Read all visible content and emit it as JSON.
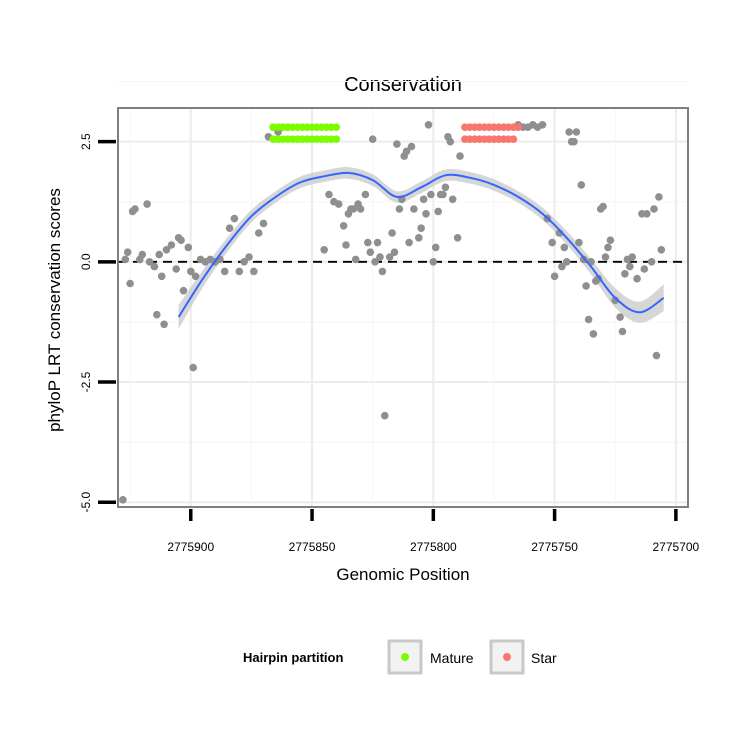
{
  "chart_data": {
    "type": "scatter",
    "title": "Conservation",
    "xlabel": "Genomic Position",
    "ylabel": "phyloP LRT conservation scores",
    "x_reversed": true,
    "xlim": [
      2775930,
      2775695
    ],
    "ylim": [
      -5.1,
      3.2
    ],
    "x_ticks": [
      2775900,
      2775850,
      2775800,
      2775750,
      2775700
    ],
    "x_tick_labels": [
      "2775900",
      "2775850",
      "2775800",
      "2775750",
      "2775700"
    ],
    "y_ticks": [
      -5.0,
      -2.5,
      0.0,
      2.5
    ],
    "y_tick_labels": [
      "-5.0",
      "-2.5",
      "0.0",
      "2.5"
    ],
    "reference_line": {
      "y": 0,
      "style": "dashed"
    },
    "grid": true,
    "legend": {
      "title": "Hairpin partition",
      "position": "bottom",
      "entries": [
        {
          "label": "Mature",
          "color": "#7cfc00"
        },
        {
          "label": "Star",
          "color": "#f8766d"
        }
      ]
    },
    "colors": {
      "other": "#8f8f8f",
      "smooth": "#3366ff",
      "ribbon": "#cccccc"
    },
    "smooth": {
      "x": [
        2775905,
        2775895,
        2775885,
        2775875,
        2775865,
        2775855,
        2775845,
        2775835,
        2775825,
        2775815,
        2775805,
        2775795,
        2775785,
        2775775,
        2775765,
        2775755,
        2775745,
        2775735,
        2775725,
        2775715,
        2775705
      ],
      "y": [
        -1.15,
        -0.35,
        0.35,
        0.95,
        1.35,
        1.65,
        1.78,
        1.85,
        1.7,
        1.35,
        1.55,
        1.8,
        1.75,
        1.6,
        1.35,
        1.0,
        0.5,
        -0.1,
        -0.75,
        -1.05,
        -0.75
      ],
      "se": [
        0.25,
        0.18,
        0.15,
        0.13,
        0.12,
        0.12,
        0.12,
        0.12,
        0.12,
        0.12,
        0.12,
        0.12,
        0.12,
        0.12,
        0.12,
        0.13,
        0.14,
        0.16,
        0.2,
        0.22,
        0.28
      ]
    },
    "series": [
      {
        "name": "Mature",
        "points": [
          [
            2775866,
            2.8
          ],
          [
            2775864,
            2.8
          ],
          [
            2775862,
            2.8
          ],
          [
            2775860,
            2.8
          ],
          [
            2775858,
            2.8
          ],
          [
            2775856,
            2.8
          ],
          [
            2775854,
            2.8
          ],
          [
            2775852,
            2.8
          ],
          [
            2775850,
            2.8
          ],
          [
            2775848,
            2.8
          ],
          [
            2775846,
            2.8
          ],
          [
            2775844,
            2.8
          ],
          [
            2775842,
            2.8
          ],
          [
            2775840,
            2.8
          ],
          [
            2775866,
            2.55
          ],
          [
            2775864,
            2.55
          ],
          [
            2775862,
            2.55
          ],
          [
            2775860,
            2.55
          ],
          [
            2775858,
            2.55
          ],
          [
            2775856,
            2.55
          ],
          [
            2775854,
            2.55
          ],
          [
            2775852,
            2.55
          ],
          [
            2775850,
            2.55
          ],
          [
            2775848,
            2.55
          ],
          [
            2775846,
            2.55
          ],
          [
            2775844,
            2.55
          ],
          [
            2775842,
            2.55
          ],
          [
            2775840,
            2.55
          ]
        ]
      },
      {
        "name": "Star",
        "points": [
          [
            2775787,
            2.8
          ],
          [
            2775785,
            2.8
          ],
          [
            2775783,
            2.8
          ],
          [
            2775781,
            2.8
          ],
          [
            2775779,
            2.8
          ],
          [
            2775777,
            2.8
          ],
          [
            2775775,
            2.8
          ],
          [
            2775773,
            2.8
          ],
          [
            2775771,
            2.8
          ],
          [
            2775769,
            2.8
          ],
          [
            2775767,
            2.8
          ],
          [
            2775765,
            2.8
          ],
          [
            2775787,
            2.55
          ],
          [
            2775785,
            2.55
          ],
          [
            2775783,
            2.55
          ],
          [
            2775781,
            2.55
          ],
          [
            2775779,
            2.55
          ],
          [
            2775777,
            2.55
          ],
          [
            2775775,
            2.55
          ],
          [
            2775773,
            2.55
          ],
          [
            2775771,
            2.55
          ],
          [
            2775769,
            2.55
          ],
          [
            2775767,
            2.55
          ]
        ]
      },
      {
        "name": "",
        "points": [
          [
            2775928,
            -4.95
          ],
          [
            2775927,
            0.05
          ],
          [
            2775926,
            0.2
          ],
          [
            2775925,
            -0.45
          ],
          [
            2775924,
            1.05
          ],
          [
            2775923,
            1.1
          ],
          [
            2775921,
            0.05
          ],
          [
            2775920,
            0.15
          ],
          [
            2775918,
            1.2
          ],
          [
            2775917,
            0.0
          ],
          [
            2775915,
            -0.1
          ],
          [
            2775914,
            -1.1
          ],
          [
            2775913,
            0.15
          ],
          [
            2775912,
            -0.3
          ],
          [
            2775911,
            -1.3
          ],
          [
            2775910,
            0.25
          ],
          [
            2775908,
            0.35
          ],
          [
            2775906,
            -0.15
          ],
          [
            2775905,
            0.5
          ],
          [
            2775904,
            0.45
          ],
          [
            2775903,
            -0.6
          ],
          [
            2775901,
            0.3
          ],
          [
            2775900,
            -0.2
          ],
          [
            2775899,
            -2.2
          ],
          [
            2775898,
            -0.3
          ],
          [
            2775896,
            0.05
          ],
          [
            2775894,
            0.0
          ],
          [
            2775892,
            0.05
          ],
          [
            2775890,
            0.0
          ],
          [
            2775888,
            0.05
          ],
          [
            2775886,
            -0.2
          ],
          [
            2775884,
            0.7
          ],
          [
            2775882,
            0.9
          ],
          [
            2775880,
            -0.2
          ],
          [
            2775878,
            0.0
          ],
          [
            2775876,
            0.1
          ],
          [
            2775874,
            -0.2
          ],
          [
            2775872,
            0.6
          ],
          [
            2775870,
            0.8
          ],
          [
            2775868,
            2.6
          ],
          [
            2775866,
            2.8
          ],
          [
            2775864,
            2.7
          ],
          [
            2775862,
            2.8
          ],
          [
            2775860,
            2.8
          ],
          [
            2775845,
            0.25
          ],
          [
            2775843,
            1.4
          ],
          [
            2775841,
            1.25
          ],
          [
            2775839,
            1.2
          ],
          [
            2775837,
            0.75
          ],
          [
            2775836,
            0.35
          ],
          [
            2775835,
            1.0
          ],
          [
            2775834,
            1.1
          ],
          [
            2775833,
            1.1
          ],
          [
            2775832,
            0.05
          ],
          [
            2775831,
            1.2
          ],
          [
            2775830,
            1.1
          ],
          [
            2775828,
            1.4
          ],
          [
            2775827,
            0.4
          ],
          [
            2775826,
            0.2
          ],
          [
            2775825,
            2.55
          ],
          [
            2775824,
            0.0
          ],
          [
            2775823,
            0.4
          ],
          [
            2775822,
            0.1
          ],
          [
            2775821,
            -0.2
          ],
          [
            2775820,
            -3.2
          ],
          [
            2775818,
            0.1
          ],
          [
            2775817,
            0.6
          ],
          [
            2775816,
            0.2
          ],
          [
            2775815,
            2.45
          ],
          [
            2775814,
            1.1
          ],
          [
            2775813,
            1.3
          ],
          [
            2775812,
            2.2
          ],
          [
            2775811,
            2.3
          ],
          [
            2775810,
            0.4
          ],
          [
            2775809,
            2.4
          ],
          [
            2775808,
            1.1
          ],
          [
            2775806,
            0.5
          ],
          [
            2775805,
            0.7
          ],
          [
            2775804,
            1.3
          ],
          [
            2775803,
            1.0
          ],
          [
            2775802,
            2.85
          ],
          [
            2775801,
            1.4
          ],
          [
            2775800,
            0.0
          ],
          [
            2775799,
            0.3
          ],
          [
            2775798,
            1.05
          ],
          [
            2775797,
            1.4
          ],
          [
            2775796,
            1.4
          ],
          [
            2775795,
            1.55
          ],
          [
            2775794,
            2.6
          ],
          [
            2775793,
            2.5
          ],
          [
            2775792,
            1.3
          ],
          [
            2775790,
            0.5
          ],
          [
            2775789,
            2.2
          ],
          [
            2775765,
            2.85
          ],
          [
            2775763,
            2.8
          ],
          [
            2775761,
            2.8
          ],
          [
            2775759,
            2.85
          ],
          [
            2775757,
            2.8
          ],
          [
            2775755,
            2.85
          ],
          [
            2775753,
            0.9
          ],
          [
            2775751,
            0.4
          ],
          [
            2775750,
            -0.3
          ],
          [
            2775748,
            0.6
          ],
          [
            2775747,
            -0.1
          ],
          [
            2775746,
            0.3
          ],
          [
            2775745,
            0.0
          ],
          [
            2775744,
            2.7
          ],
          [
            2775743,
            2.5
          ],
          [
            2775742,
            2.5
          ],
          [
            2775741,
            2.7
          ],
          [
            2775740,
            0.4
          ],
          [
            2775739,
            1.6
          ],
          [
            2775738,
            0.05
          ],
          [
            2775737,
            -0.5
          ],
          [
            2775736,
            -1.2
          ],
          [
            2775735,
            0.0
          ],
          [
            2775734,
            -1.5
          ],
          [
            2775733,
            -0.4
          ],
          [
            2775732,
            -0.35
          ],
          [
            2775731,
            1.1
          ],
          [
            2775730,
            1.15
          ],
          [
            2775729,
            0.1
          ],
          [
            2775728,
            0.3
          ],
          [
            2775727,
            0.45
          ],
          [
            2775725,
            -0.8
          ],
          [
            2775723,
            -1.15
          ],
          [
            2775722,
            -1.45
          ],
          [
            2775721,
            -0.25
          ],
          [
            2775720,
            0.05
          ],
          [
            2775719,
            -0.1
          ],
          [
            2775718,
            0.1
          ],
          [
            2775716,
            -0.35
          ],
          [
            2775714,
            1.0
          ],
          [
            2775713,
            -0.15
          ],
          [
            2775712,
            1.0
          ],
          [
            2775710,
            0.0
          ],
          [
            2775709,
            1.1
          ],
          [
            2775708,
            -1.95
          ],
          [
            2775707,
            1.35
          ],
          [
            2775706,
            0.25
          ]
        ]
      }
    ]
  }
}
